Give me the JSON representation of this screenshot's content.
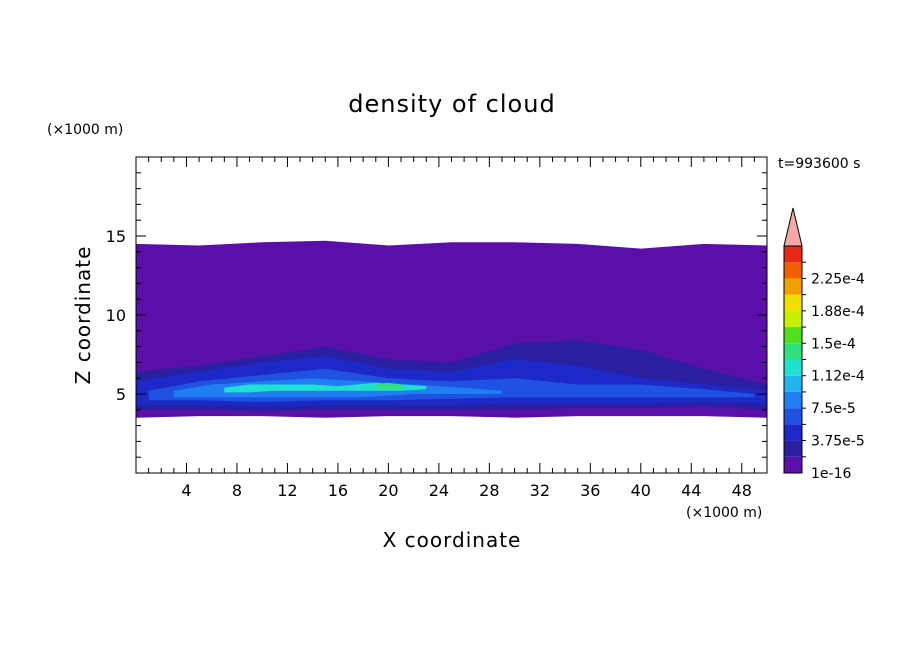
{
  "chart_data": {
    "type": "heatmap",
    "title": "density of cloud",
    "xlabel": "X coordinate",
    "ylabel": "Z coordinate",
    "x_unit": "(×1000 m)",
    "y_unit": "(×1000 m)",
    "time_label": "t=993600 s",
    "xlim": [
      0,
      50
    ],
    "ylim": [
      0,
      20
    ],
    "x_ticks": [
      4,
      8,
      12,
      16,
      20,
      24,
      28,
      32,
      36,
      40,
      44,
      48
    ],
    "y_ticks": [
      5,
      10,
      15
    ],
    "colorbar": {
      "labels": [
        "1e-16",
        "3.75e-5",
        "7.5e-5",
        "1.12e-4",
        "1.5e-4",
        "1.88e-4",
        "2.25e-4"
      ],
      "levels": [
        0,
        1.875e-05,
        3.75e-05,
        5.625e-05,
        7.5e-05,
        9.375e-05,
        0.0001125,
        0.00013125,
        0.00015,
        0.00016875,
        0.0001875,
        0.00020625,
        0.000225,
        0.00024375
      ],
      "colors": [
        "#5a10a8",
        "#2a1fa0",
        "#1c28c8",
        "#1f52e0",
        "#1f7ef0",
        "#22b4f0",
        "#20e0d0",
        "#30e080",
        "#50e020",
        "#c8f000",
        "#f0e000",
        "#f0a000",
        "#f06000",
        "#e82818"
      ],
      "extend_color": "#f4a8a8"
    },
    "bands": [
      {
        "level_index": 0,
        "x": [
          0,
          5,
          10,
          15,
          20,
          25,
          30,
          35,
          40,
          45,
          50
        ],
        "z_bottom": [
          3.5,
          3.6,
          3.6,
          3.5,
          3.6,
          3.6,
          3.5,
          3.6,
          3.6,
          3.6,
          3.5
        ],
        "z_top": [
          14.5,
          14.4,
          14.6,
          14.7,
          14.4,
          14.6,
          14.6,
          14.5,
          14.2,
          14.5,
          14.4
        ]
      },
      {
        "level_index": 1,
        "x": [
          0,
          5,
          10,
          15,
          20,
          25,
          30,
          35,
          40,
          45,
          50
        ],
        "z_bottom": [
          4.0,
          4.0,
          3.9,
          4.0,
          4.0,
          4.0,
          4.0,
          4.1,
          4.1,
          4.2,
          4.0
        ],
        "z_top": [
          6.4,
          6.8,
          7.4,
          8.0,
          7.2,
          7.0,
          8.2,
          8.4,
          7.8,
          6.6,
          5.6
        ]
      },
      {
        "level_index": 2,
        "x": [
          0,
          5,
          10,
          15,
          20,
          25,
          30,
          35,
          40,
          45,
          50
        ],
        "z_bottom": [
          4.3,
          4.3,
          4.2,
          4.3,
          4.3,
          4.3,
          4.4,
          4.4,
          4.4,
          4.5,
          4.4
        ],
        "z_top": [
          5.8,
          6.4,
          7.0,
          7.4,
          6.6,
          6.4,
          7.2,
          6.8,
          6.0,
          5.6,
          5.2
        ]
      },
      {
        "level_index": 3,
        "x": [
          1,
          5,
          10,
          15,
          20,
          25,
          30,
          35,
          40,
          45,
          49
        ],
        "z_bottom": [
          4.6,
          4.6,
          4.5,
          4.6,
          4.6,
          4.7,
          4.8,
          4.8,
          4.8,
          4.8,
          4.8
        ],
        "z_top": [
          5.2,
          5.8,
          6.2,
          6.6,
          6.0,
          5.8,
          6.0,
          5.6,
          5.6,
          5.3,
          5.0
        ]
      },
      {
        "level_index": 4,
        "x": [
          3,
          6,
          10,
          14,
          18,
          22,
          26,
          29
        ],
        "z_bottom": [
          4.8,
          4.8,
          4.8,
          4.8,
          4.8,
          5.0,
          5.0,
          5.0
        ],
        "z_top": [
          5.2,
          5.6,
          5.8,
          6.0,
          5.8,
          5.6,
          5.4,
          5.2
        ]
      },
      {
        "level_index": 6,
        "x": [
          7,
          9,
          11,
          14,
          16,
          19,
          21,
          23
        ],
        "z_bottom": [
          5.1,
          5.1,
          5.2,
          5.2,
          5.2,
          5.2,
          5.2,
          5.3
        ],
        "z_top": [
          5.4,
          5.6,
          5.6,
          5.6,
          5.5,
          5.7,
          5.6,
          5.5
        ]
      },
      {
        "level_index": 7,
        "x": [
          19,
          20,
          21
        ],
        "z_bottom": [
          5.3,
          5.3,
          5.3
        ],
        "z_top": [
          5.6,
          5.7,
          5.6
        ]
      }
    ]
  }
}
